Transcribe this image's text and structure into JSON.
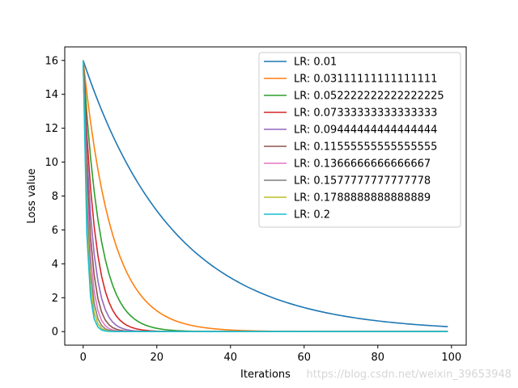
{
  "watermark": "https://blog.csdn.net/weixin_39653948",
  "chart_data": {
    "type": "line",
    "xlabel": "Iterations",
    "ylabel": "Loss value",
    "xlim": [
      -5,
      104
    ],
    "ylim": [
      -0.8,
      16.8
    ],
    "xticks": [
      0,
      20,
      40,
      60,
      80,
      100
    ],
    "yticks": [
      0,
      2,
      4,
      6,
      8,
      10,
      12,
      14,
      16
    ],
    "grid": false,
    "legend_position": "top-right",
    "x_range": [
      0,
      99
    ],
    "initial_loss": 16,
    "series": [
      {
        "name": "LR: 0.01",
        "lr": 0.01,
        "color": "#1f77b4"
      },
      {
        "name": "LR: 0.03111111111111111",
        "lr": 0.03111111111111111,
        "color": "#ff7f0e"
      },
      {
        "name": "LR: 0.052222222222222225",
        "lr": 0.052222222222222225,
        "color": "#2ca02c"
      },
      {
        "name": "LR: 0.07333333333333333",
        "lr": 0.07333333333333333,
        "color": "#d62728"
      },
      {
        "name": "LR: 0.09444444444444444",
        "lr": 0.09444444444444444,
        "color": "#9467bd"
      },
      {
        "name": "LR: 0.11555555555555555",
        "lr": 0.11555555555555555,
        "color": "#8c564b"
      },
      {
        "name": "LR: 0.1366666666666667",
        "lr": 0.1366666666666667,
        "color": "#e377c2"
      },
      {
        "name": "LR: 0.1577777777777778",
        "lr": 0.1577777777777778,
        "color": "#7f7f7f"
      },
      {
        "name": "LR: 0.1788888888888889",
        "lr": 0.1788888888888889,
        "color": "#bcbd22"
      },
      {
        "name": "LR: 0.2",
        "lr": 0.2,
        "color": "#17becf"
      }
    ]
  }
}
